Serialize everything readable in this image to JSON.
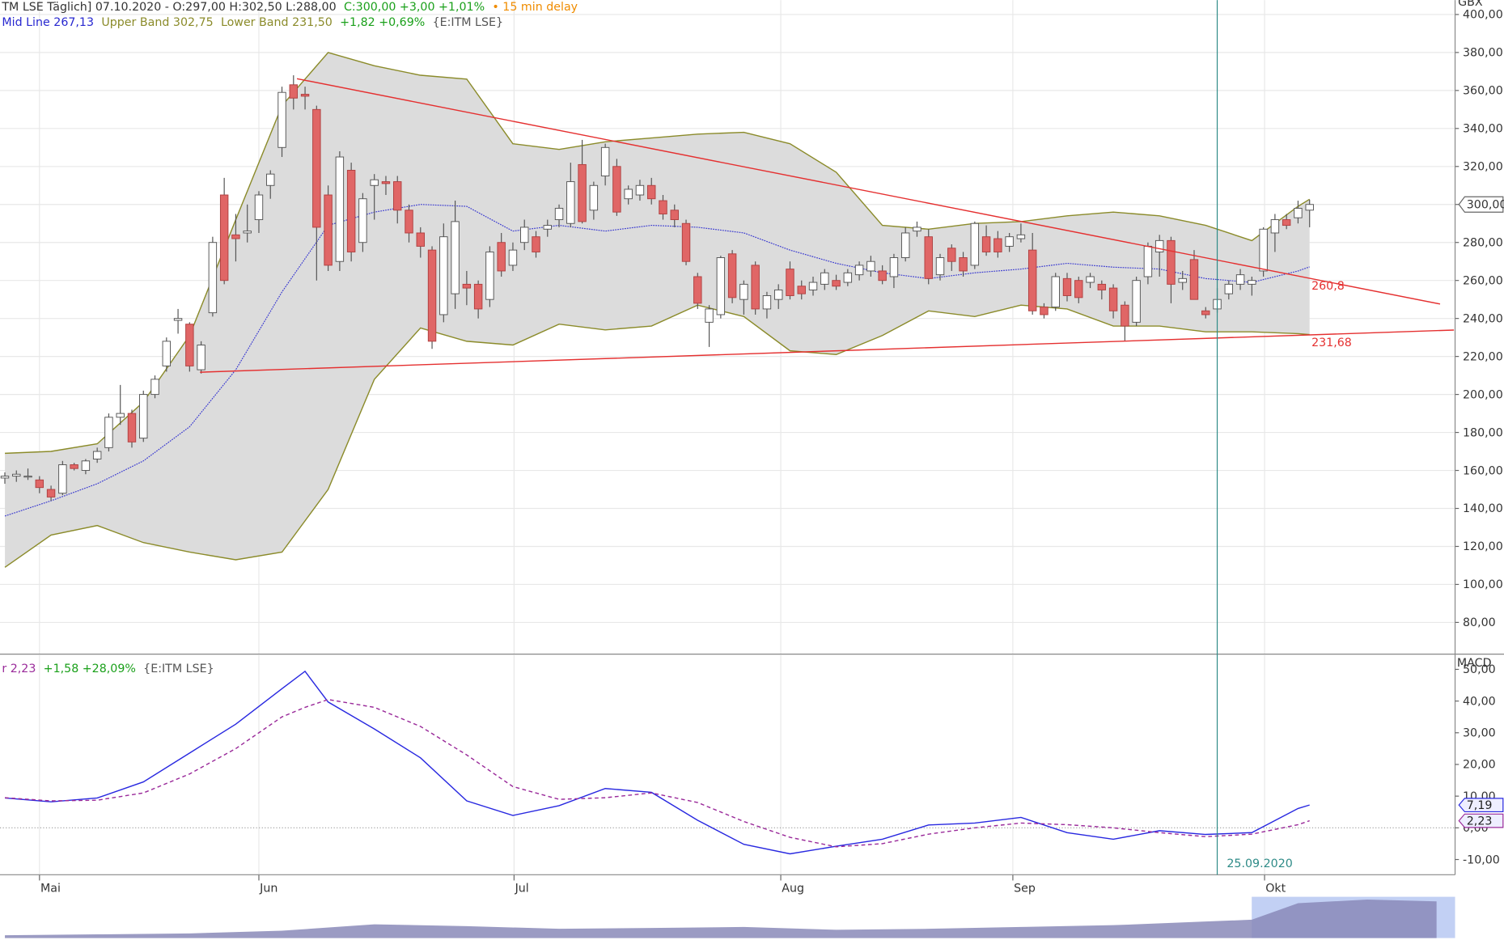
{
  "header": {
    "symbol": "TM LSE Täglich] 07.10.2020 - O:297,00 H:302,50 L:288,00",
    "change": "C:300,00 +3,00 +1,01%",
    "delay": "• 15 min delay",
    "mid": "Mid Line 267,13",
    "upper": "Upper Band 302,75",
    "lower": "Lower Band 231,50",
    "band_change": "+1,82 +0,69%",
    "source": "{E:ITM LSE}"
  },
  "macd_header": {
    "value": "r 2,23",
    "change": "+1,58 +28,09%",
    "source": "{E:ITM LSE}"
  },
  "chart_data": [
    {
      "type": "candlestick",
      "axis_label": "GBX",
      "xlim": [
        -0.42,
        125.6
      ],
      "ylim": [
        63.3,
        407.6
      ],
      "grid": true,
      "up_color": "#ffffff",
      "down_color": "#e06666",
      "band_color": "#8b8b2a",
      "band_fill": "#dcdcdc",
      "mid_color": "#3a3ad0",
      "trend_color": "#e53030",
      "xticks": [
        {
          "value": 3,
          "label": "Mai"
        },
        {
          "value": 22,
          "label": "Jun"
        },
        {
          "value": 44.1,
          "label": "Jul"
        },
        {
          "value": 67.2,
          "label": "Aug"
        },
        {
          "value": 87.3,
          "label": "Sep"
        },
        {
          "value": 109.1,
          "label": "Okt"
        }
      ],
      "yticks": [
        {
          "value": 80,
          "label": "80,00"
        },
        {
          "value": 100,
          "label": "100,00"
        },
        {
          "value": 120,
          "label": "120,00"
        },
        {
          "value": 140,
          "label": "140,00"
        },
        {
          "value": 160,
          "label": "160,00"
        },
        {
          "value": 180,
          "label": "180,00"
        },
        {
          "value": 200,
          "label": "200,00"
        },
        {
          "value": 220,
          "label": "220,00"
        },
        {
          "value": 240,
          "label": "240,00"
        },
        {
          "value": 260,
          "label": "260,00"
        },
        {
          "value": 280,
          "label": "280,00"
        },
        {
          "value": 300,
          "label": "300,00"
        },
        {
          "value": 320,
          "label": "320,00"
        },
        {
          "value": 340,
          "label": "340,00"
        },
        {
          "value": 360,
          "label": "360,00"
        },
        {
          "value": 380,
          "label": "380,00"
        },
        {
          "value": 400,
          "label": "400,00"
        }
      ],
      "last_label": "300,00",
      "candles": [
        [
          156,
          159,
          153,
          157
        ],
        [
          157,
          160,
          154,
          158
        ],
        [
          157,
          161,
          155,
          157
        ],
        [
          155,
          157,
          148,
          151
        ],
        [
          150,
          152,
          144,
          146
        ],
        [
          148,
          165,
          147,
          163
        ],
        [
          163,
          164,
          160,
          161
        ],
        [
          160,
          166,
          158,
          165
        ],
        [
          166,
          172,
          164,
          170
        ],
        [
          172,
          190,
          170,
          188
        ],
        [
          188,
          205,
          184,
          190
        ],
        [
          190,
          192,
          172,
          175
        ],
        [
          177,
          202,
          175,
          200
        ],
        [
          200,
          210,
          198,
          208
        ],
        [
          215,
          230,
          212,
          228
        ],
        [
          239,
          245,
          232,
          240
        ],
        [
          237,
          238,
          212,
          215
        ],
        [
          213,
          228,
          211,
          226
        ],
        [
          243,
          283,
          241,
          280
        ],
        [
          305,
          314,
          258,
          260
        ],
        [
          284,
          295,
          270,
          282
        ],
        [
          285,
          300,
          280,
          286
        ],
        [
          292,
          307,
          285,
          305
        ],
        [
          310,
          318,
          303,
          316
        ],
        [
          330,
          362,
          325,
          359
        ],
        [
          363,
          368,
          350,
          356
        ],
        [
          358,
          362,
          350,
          357
        ],
        [
          350,
          352,
          260,
          288
        ],
        [
          305,
          310,
          265,
          268
        ],
        [
          270,
          328,
          265,
          325
        ],
        [
          318,
          322,
          270,
          275
        ],
        [
          280,
          306,
          275,
          303
        ],
        [
          310,
          316,
          292,
          313
        ],
        [
          312,
          315,
          305,
          311
        ],
        [
          312,
          315,
          290,
          297
        ],
        [
          297,
          300,
          280,
          285
        ],
        [
          285,
          288,
          272,
          278
        ],
        [
          276,
          278,
          224,
          228
        ],
        [
          242,
          290,
          238,
          283
        ],
        [
          253,
          302,
          245,
          291
        ],
        [
          258,
          265,
          247,
          256
        ],
        [
          258,
          260,
          240,
          245
        ],
        [
          250,
          278,
          246,
          275
        ],
        [
          280,
          285,
          262,
          265
        ],
        [
          268,
          280,
          265,
          276
        ],
        [
          280,
          292,
          276,
          288
        ],
        [
          283,
          286,
          272,
          275
        ],
        [
          287,
          292,
          283,
          289
        ],
        [
          292,
          300,
          288,
          298
        ],
        [
          290,
          322,
          288,
          312
        ],
        [
          321,
          334,
          290,
          291
        ],
        [
          297,
          312,
          292,
          310
        ],
        [
          315,
          332,
          310,
          330
        ],
        [
          320,
          324,
          294,
          296
        ],
        [
          303,
          310,
          300,
          308
        ],
        [
          305,
          313,
          302,
          310
        ],
        [
          310,
          314,
          300,
          303
        ],
        [
          302,
          305,
          292,
          295
        ],
        [
          297,
          300,
          288,
          292
        ],
        [
          290,
          292,
          268,
          270
        ],
        [
          262,
          264,
          245,
          248
        ],
        [
          238,
          247,
          225,
          245
        ],
        [
          242,
          273,
          240,
          272
        ],
        [
          274,
          276,
          248,
          251
        ],
        [
          250,
          260,
          242,
          258
        ],
        [
          268,
          270,
          242,
          245
        ],
        [
          245,
          254,
          240,
          252
        ],
        [
          250,
          258,
          245,
          255
        ],
        [
          266,
          270,
          250,
          252
        ],
        [
          257,
          260,
          250,
          253
        ],
        [
          255,
          262,
          252,
          259
        ],
        [
          258,
          266,
          255,
          264
        ],
        [
          260,
          263,
          255,
          257
        ],
        [
          259,
          266,
          257,
          264
        ],
        [
          263,
          270,
          260,
          268
        ],
        [
          265,
          273,
          262,
          270
        ],
        [
          265,
          268,
          258,
          260
        ],
        [
          262,
          274,
          256,
          272
        ],
        [
          272,
          288,
          270,
          285
        ],
        [
          286,
          291,
          283,
          288
        ],
        [
          283,
          287,
          258,
          261
        ],
        [
          263,
          274,
          260,
          272
        ],
        [
          277,
          279,
          265,
          270
        ],
        [
          272,
          275,
          262,
          265
        ],
        [
          268,
          291,
          266,
          290
        ],
        [
          283,
          289,
          273,
          275
        ],
        [
          282,
          286,
          272,
          275
        ],
        [
          278,
          285,
          275,
          283
        ],
        [
          282,
          290,
          280,
          284
        ],
        [
          276,
          285,
          242,
          244
        ],
        [
          246,
          248,
          240,
          242
        ],
        [
          246,
          264,
          244,
          262
        ],
        [
          261,
          264,
          249,
          252
        ],
        [
          260,
          262,
          248,
          251
        ],
        [
          259,
          264,
          256,
          262
        ],
        [
          258,
          260,
          250,
          255
        ],
        [
          256,
          258,
          240,
          244
        ],
        [
          247,
          249,
          228,
          236
        ],
        [
          238,
          262,
          236,
          260
        ],
        [
          262,
          280,
          258,
          278
        ],
        [
          275,
          284,
          262,
          281
        ],
        [
          281,
          283,
          248,
          258
        ],
        [
          259,
          265,
          255,
          261
        ],
        [
          271,
          276,
          250,
          250
        ],
        [
          244,
          246,
          240,
          242
        ],
        [
          245,
          256,
          243,
          250
        ],
        [
          253,
          260,
          250,
          258
        ],
        [
          258,
          266,
          255,
          263
        ],
        [
          258,
          262,
          252,
          260
        ],
        [
          265,
          288,
          262,
          287
        ],
        [
          285,
          295,
          275,
          292
        ],
        [
          292,
          295,
          287,
          289
        ],
        [
          293,
          302,
          290,
          298
        ],
        [
          297,
          302.5,
          288,
          300
        ]
      ],
      "bands": {
        "x": [
          0,
          4,
          8,
          12,
          16,
          20,
          24,
          28,
          32,
          36,
          40,
          44,
          48,
          52,
          56,
          60,
          64,
          68,
          72,
          76,
          80,
          84,
          88,
          92,
          96,
          100,
          104,
          108,
          112,
          113
        ],
        "upper": [
          169,
          170,
          174,
          196,
          231,
          292,
          352,
          380,
          373,
          368,
          366,
          332,
          329,
          333,
          335,
          337,
          338,
          332,
          317,
          289,
          287,
          290,
          291,
          294,
          296,
          294,
          289,
          281,
          299,
          302.75
        ],
        "lower": [
          109,
          126,
          131,
          122,
          117,
          113,
          117,
          150,
          208,
          235,
          228,
          226,
          237,
          234,
          236,
          247,
          241,
          223,
          221,
          231,
          244,
          241,
          247,
          245,
          236,
          236,
          233,
          233,
          232,
          231.5
        ],
        "mid": [
          136,
          144,
          153,
          165,
          183,
          213,
          254,
          289,
          296,
          300,
          299,
          286,
          289,
          286,
          289,
          288,
          285,
          276,
          269,
          264,
          261,
          264,
          266,
          269,
          267,
          266,
          261,
          259,
          265,
          267.13
        ]
      },
      "trendlines": [
        {
          "x": [
            25.3,
            124.3
          ],
          "y": [
            366.2,
            247.6
          ],
          "label": "260,8"
        },
        {
          "x": [
            16.9,
            125.5
          ],
          "y": [
            211.7,
            233.9
          ],
          "label": "231,68"
        }
      ],
      "marker": {
        "x": 105,
        "label": "25.09.2020",
        "color": "#2e8b87"
      }
    },
    {
      "type": "line",
      "axis_label": "MACD",
      "ylim": [
        -14.8,
        54.5
      ],
      "zero_line": true,
      "yticks": [
        {
          "value": -10,
          "label": "-10,00"
        },
        {
          "value": 0,
          "label": "0,00"
        },
        {
          "value": 10,
          "label": "10,00"
        },
        {
          "value": 20,
          "label": "20,00"
        },
        {
          "value": 30,
          "label": "30,00"
        },
        {
          "value": 40,
          "label": "40,00"
        },
        {
          "value": 50,
          "label": "50,00"
        }
      ],
      "x": [
        0,
        4,
        8,
        12,
        16,
        20,
        24,
        26,
        28,
        32,
        36,
        40,
        44,
        48,
        52,
        56,
        60,
        64,
        68,
        72,
        76,
        80,
        84,
        88,
        92,
        96,
        100,
        104,
        108,
        112,
        113
      ],
      "series": [
        {
          "color": "#2828e0",
          "dashed": false,
          "last_label": "7,19",
          "values": [
            9.4,
            8.2,
            9.4,
            14.5,
            23.6,
            32.7,
            43.9,
            49.4,
            39.7,
            31.2,
            22.1,
            8.5,
            3.9,
            7.0,
            12.4,
            11.2,
            2.4,
            -5.2,
            -8.2,
            -5.8,
            -3.6,
            0.9,
            1.5,
            3.3,
            -1.5,
            -3.6,
            -0.9,
            -2.1,
            -1.5,
            6.1,
            7.19
          ]
        },
        {
          "color": "#9a2a9a",
          "dashed": true,
          "last_label": "2,23",
          "values": [
            9.5,
            8.5,
            8.7,
            11,
            17,
            25,
            35,
            38,
            40.5,
            38,
            32,
            23,
            13,
            9,
            9.5,
            11,
            8,
            2,
            -3,
            -6,
            -5,
            -2,
            0,
            1.5,
            1,
            0,
            -1.5,
            -2.8,
            -2,
            1,
            2.23
          ]
        }
      ]
    },
    {
      "type": "area",
      "ylim": [
        0,
        45
      ],
      "color": "#8a8ab8",
      "x": [
        0,
        8,
        16,
        24,
        32,
        40,
        48,
        56,
        64,
        72,
        80,
        88,
        96,
        104,
        108,
        112,
        118,
        124
      ],
      "values": [
        3,
        4,
        5,
        8,
        15,
        13,
        10,
        11,
        12,
        9,
        10,
        12,
        14,
        18,
        20,
        38,
        42,
        40
      ]
    }
  ]
}
